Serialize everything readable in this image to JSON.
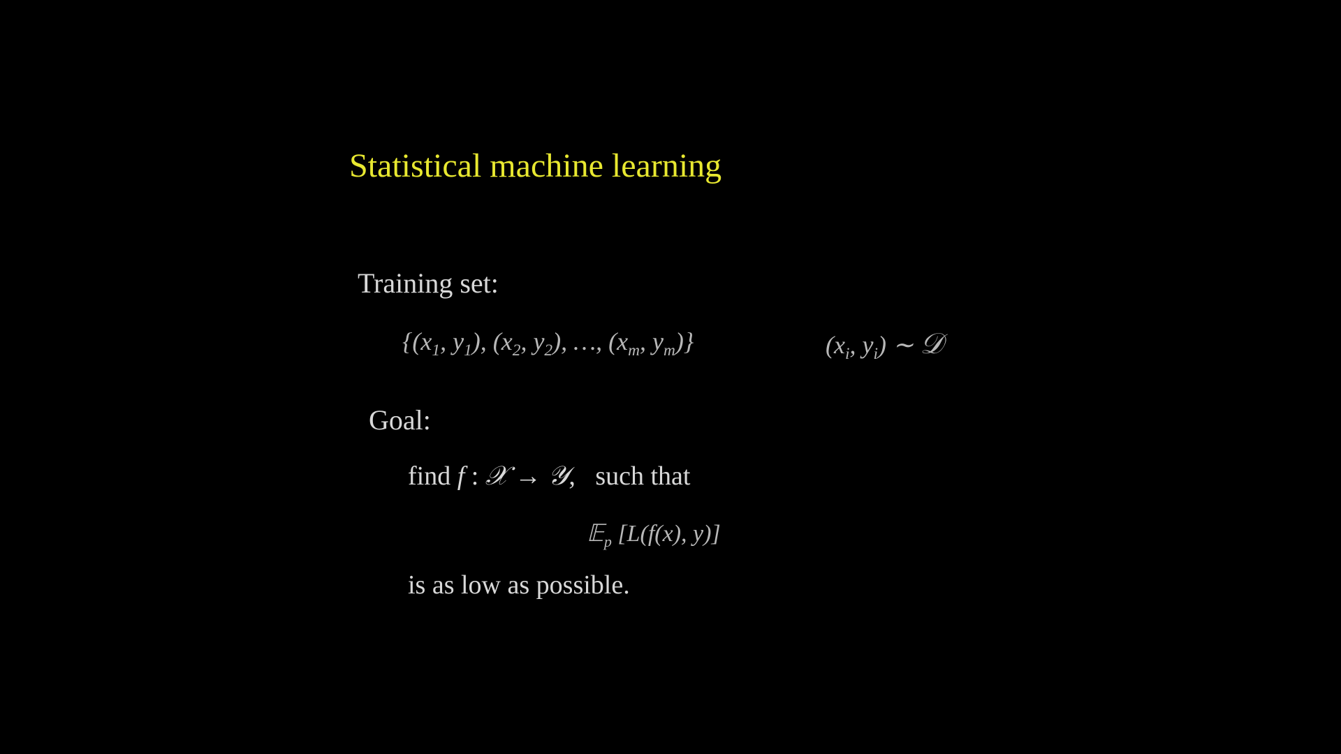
{
  "slide": {
    "title": "Statistical machine learning",
    "training_set": {
      "label": "Training set:",
      "formula": "{(x₁, y₁), (x₂, y₂), …, (xₘ, yₘ)}",
      "distribution": "(xᵢ, yᵢ) ∼ 𝒟"
    },
    "goal": {
      "label": "Goal:",
      "find_prefix": "find  ",
      "find_math": "f : 𝒳 → 𝒴,",
      "find_suffix": "   such that",
      "expectation": "𝔼ₚ [L(f(x), y)]",
      "low_line": "is as low as possible."
    },
    "colors": {
      "background": "#000000",
      "title": "#e8e830",
      "body_text": "#d8d8d8",
      "math_text": "#b8b8b8"
    },
    "fonts": {
      "title_size": 48,
      "body_size": 40,
      "math_size": 36
    }
  }
}
